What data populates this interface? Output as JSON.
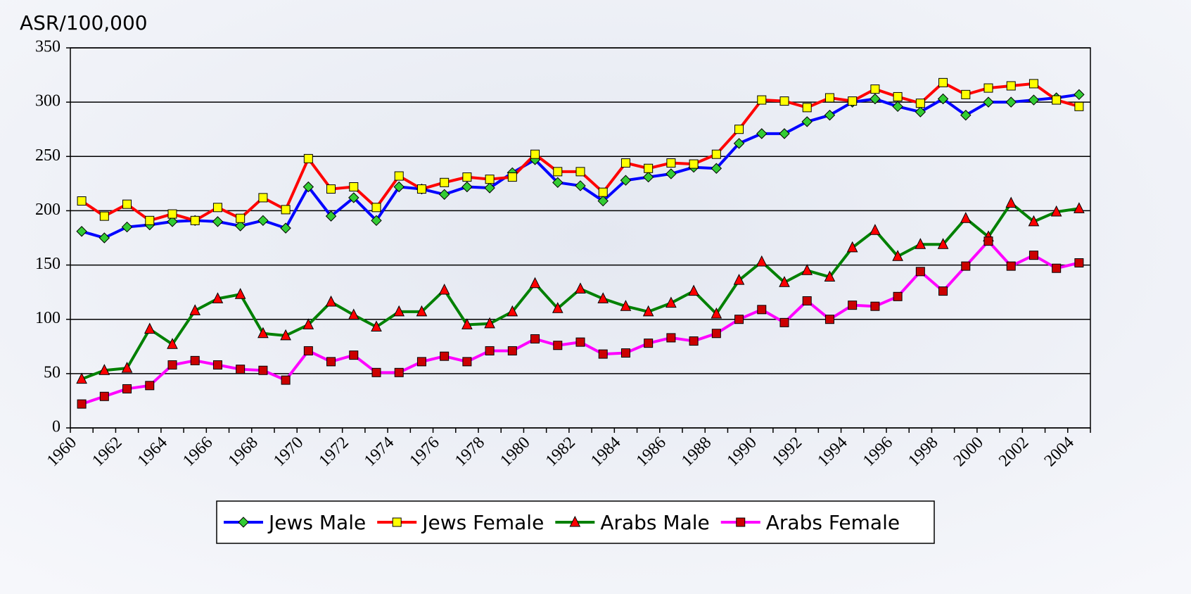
{
  "chart_data": {
    "type": "line",
    "y_label": "ASR/100,000",
    "categories": [
      "1960",
      null,
      "1962",
      null,
      "1964",
      null,
      "1966",
      null,
      "1968",
      null,
      "1970",
      null,
      "1972",
      null,
      "1974",
      null,
      "1976",
      null,
      "1978",
      null,
      "1980",
      null,
      "1982",
      null,
      "1984",
      null,
      "1986",
      null,
      "1988",
      null,
      "1990",
      null,
      "1992",
      null,
      "1994",
      null,
      "1996",
      null,
      "1998",
      null,
      "2000",
      null,
      "2002",
      null,
      "2004"
    ],
    "ylim": [
      0,
      350
    ],
    "yticks": [
      0,
      50,
      100,
      150,
      200,
      250,
      300,
      350
    ],
    "grid": true,
    "legend": "bottom",
    "series": [
      {
        "name": "Jews Male",
        "color": "#0000ff",
        "marker": "diamond",
        "marker_color": "#33cc33",
        "values": [
          181,
          175,
          185,
          187,
          190,
          191,
          190,
          186,
          191,
          184,
          222,
          195,
          212,
          191,
          222,
          220,
          215,
          222,
          221,
          235,
          247,
          226,
          223,
          209,
          228,
          231,
          234,
          240,
          239,
          262,
          271,
          271,
          282,
          288,
          300,
          303,
          296,
          291,
          303,
          288,
          300,
          300,
          302,
          304,
          307
        ]
      },
      {
        "name": "Jews Female",
        "color": "#ff0000",
        "marker": "square",
        "marker_color": "#ffff00",
        "values": [
          209,
          195,
          206,
          191,
          197,
          191,
          203,
          193,
          212,
          201,
          248,
          220,
          222,
          203,
          232,
          220,
          226,
          231,
          229,
          231,
          252,
          236,
          236,
          217,
          244,
          239,
          244,
          243,
          252,
          275,
          302,
          301,
          295,
          304,
          301,
          312,
          305,
          299,
          318,
          307,
          313,
          315,
          317,
          302,
          296
        ]
      },
      {
        "name": "Arabs Male",
        "color": "#008000",
        "marker": "triangle",
        "marker_color": "#ff0000",
        "values": [
          45,
          53,
          55,
          91,
          77,
          108,
          119,
          123,
          87,
          85,
          95,
          116,
          104,
          93,
          107,
          107,
          127,
          95,
          96,
          107,
          133,
          110,
          128,
          119,
          112,
          107,
          115,
          126,
          105,
          136,
          153,
          134,
          145,
          139,
          166,
          182,
          158,
          169,
          169,
          193,
          176,
          207,
          190,
          199,
          202
        ]
      },
      {
        "name": "Arabs Female",
        "color": "#ff00ff",
        "marker": "square",
        "marker_color": "#cc0000",
        "values": [
          22,
          29,
          36,
          39,
          58,
          62,
          58,
          54,
          53,
          44,
          71,
          61,
          67,
          51,
          51,
          61,
          66,
          61,
          71,
          71,
          82,
          76,
          79,
          68,
          69,
          78,
          83,
          80,
          87,
          100,
          109,
          97,
          117,
          100,
          113,
          112,
          121,
          144,
          126,
          149,
          172,
          149,
          159,
          147,
          152
        ]
      }
    ]
  }
}
